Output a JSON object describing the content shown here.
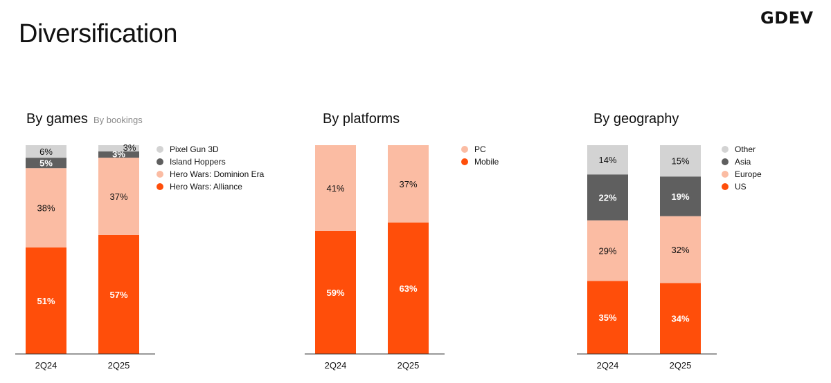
{
  "page": {
    "title": "Diversification",
    "logo": "GDEV"
  },
  "colors": {
    "orange": "#FF4E0A",
    "peach": "#FBBCA3",
    "darkgray": "#5F5F5F",
    "lightgray": "#D3D3D3"
  },
  "chart_data": [
    {
      "type": "bar",
      "stacked": true,
      "title": "By games",
      "subtitle": "By bookings",
      "categories": [
        "2Q24",
        "2Q25"
      ],
      "series": [
        {
          "name": "Hero Wars: Alliance",
          "color": "#FF4E0A",
          "values": [
            51,
            57
          ],
          "labels": [
            "51%",
            "57%"
          ]
        },
        {
          "name": "Hero Wars: Dominion Era",
          "color": "#FBBCA3",
          "values": [
            38,
            37
          ],
          "labels": [
            "38%",
            "37%"
          ]
        },
        {
          "name": "Island Hoppers",
          "color": "#5F5F5F",
          "values": [
            5,
            3
          ],
          "labels": [
            "5%",
            "3%"
          ]
        },
        {
          "name": "Pixel Gun 3D",
          "color": "#D3D3D3",
          "values": [
            6,
            3
          ],
          "labels": [
            "6%",
            "3%"
          ]
        }
      ],
      "legend_position": "right"
    },
    {
      "type": "bar",
      "stacked": true,
      "title": "By platforms",
      "subtitle": "",
      "categories": [
        "2Q24",
        "2Q25"
      ],
      "series": [
        {
          "name": "Mobile",
          "color": "#FF4E0A",
          "values": [
            59,
            63
          ],
          "labels": [
            "59%",
            "63%"
          ]
        },
        {
          "name": "PC",
          "color": "#FBBCA3",
          "values": [
            41,
            37
          ],
          "labels": [
            "41%",
            "37%"
          ]
        }
      ],
      "legend_position": "right"
    },
    {
      "type": "bar",
      "stacked": true,
      "title": "By geography",
      "subtitle": "",
      "categories": [
        "2Q24",
        "2Q25"
      ],
      "series": [
        {
          "name": "US",
          "color": "#FF4E0A",
          "values": [
            35,
            34
          ],
          "labels": [
            "35%",
            "34%"
          ]
        },
        {
          "name": "Europe",
          "color": "#FBBCA3",
          "values": [
            29,
            32
          ],
          "labels": [
            "29%",
            "32%"
          ]
        },
        {
          "name": "Asia",
          "color": "#5F5F5F",
          "values": [
            22,
            19
          ],
          "labels": [
            "22%",
            "19%"
          ]
        },
        {
          "name": "Other",
          "color": "#D3D3D3",
          "values": [
            14,
            15
          ],
          "labels": [
            "14%",
            "15%"
          ]
        }
      ],
      "legend_position": "right"
    }
  ]
}
